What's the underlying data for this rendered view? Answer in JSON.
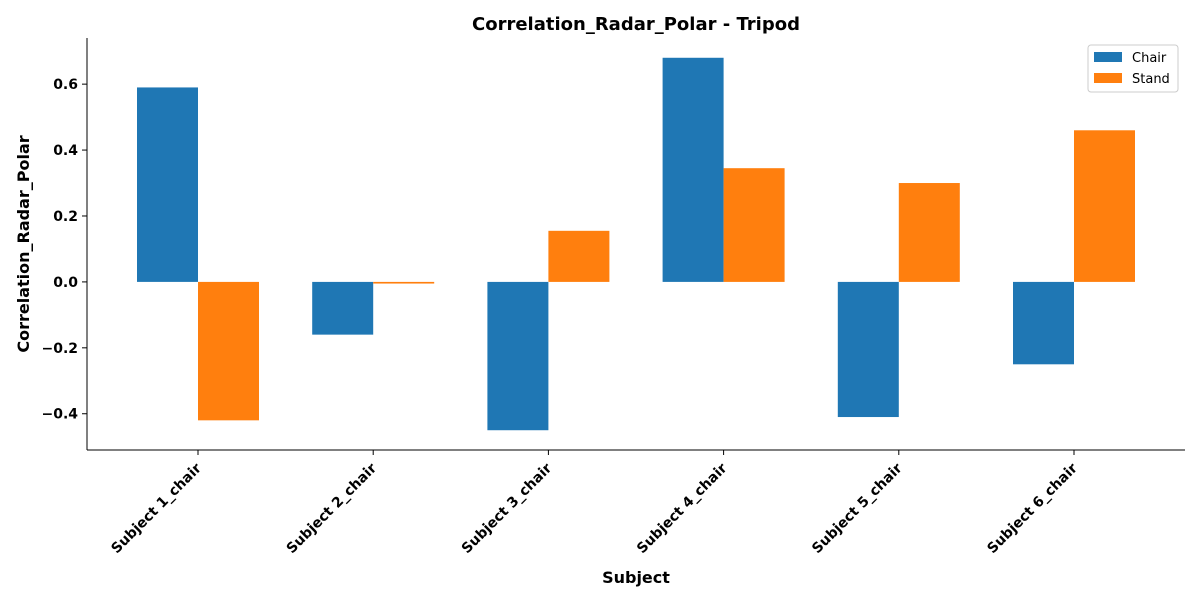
{
  "chart_data": {
    "type": "bar",
    "title": "Correlation_Radar_Polar - Tripod",
    "xlabel": "Subject",
    "ylabel": "Correlation_Radar_Polar",
    "categories": [
      "Subject 1_chair",
      "Subject 2_chair",
      "Subject 3_chair",
      "Subject 4_chair",
      "Subject 5_chair",
      "Subject 6_chair"
    ],
    "series": [
      {
        "name": "Chair",
        "color": "#1f77b4",
        "values": [
          0.59,
          -0.16,
          -0.45,
          0.68,
          -0.41,
          -0.25
        ]
      },
      {
        "name": "Stand",
        "color": "#ff7f0e",
        "values": [
          -0.42,
          -0.005,
          0.155,
          0.345,
          0.3,
          0.46
        ]
      }
    ],
    "ylim": [
      -0.51,
      0.74
    ],
    "yticks": [
      -0.4,
      -0.2,
      0.0,
      0.2,
      0.4,
      0.6
    ],
    "ytick_labels": [
      "−0.4",
      "−0.2",
      "0.0",
      "0.2",
      "0.4",
      "0.6"
    ],
    "legend_position": "top-right",
    "grid": false
  }
}
